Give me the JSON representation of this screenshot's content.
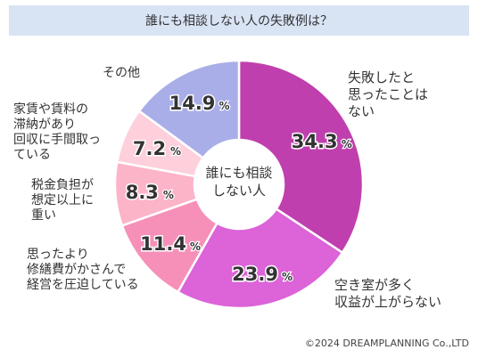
{
  "chart_data": {
    "type": "pie",
    "title": "誰にも相談しない人の失敗例は？",
    "center_label": "誰にも相談\nしない人",
    "categories": [
      "失敗したと\n思ったことは\nない",
      "空き室が多く\n収益が上がらない",
      "思ったより\n修繕費がかさんで\n経営を圧迫している",
      "税金負担が\n想定以上に\n重い",
      "家賃や賃料の\n滞納があり\n回収に手間取っ\nている",
      "その他"
    ],
    "values": [
      34.3,
      23.9,
      11.4,
      8.3,
      7.2,
      14.9
    ],
    "value_labels": [
      "34.3",
      "23.9",
      "11.4",
      "8.3",
      "7.2",
      "14.9"
    ],
    "unit": "%",
    "colors": [
      "#c03fae",
      "#dc63d8",
      "#f690b9",
      "#fcb4c8",
      "#fdd0dc",
      "#a9aee8"
    ]
  },
  "footer": {
    "copyright": "©2024 DREAMPLANNING Co.,LTD"
  }
}
